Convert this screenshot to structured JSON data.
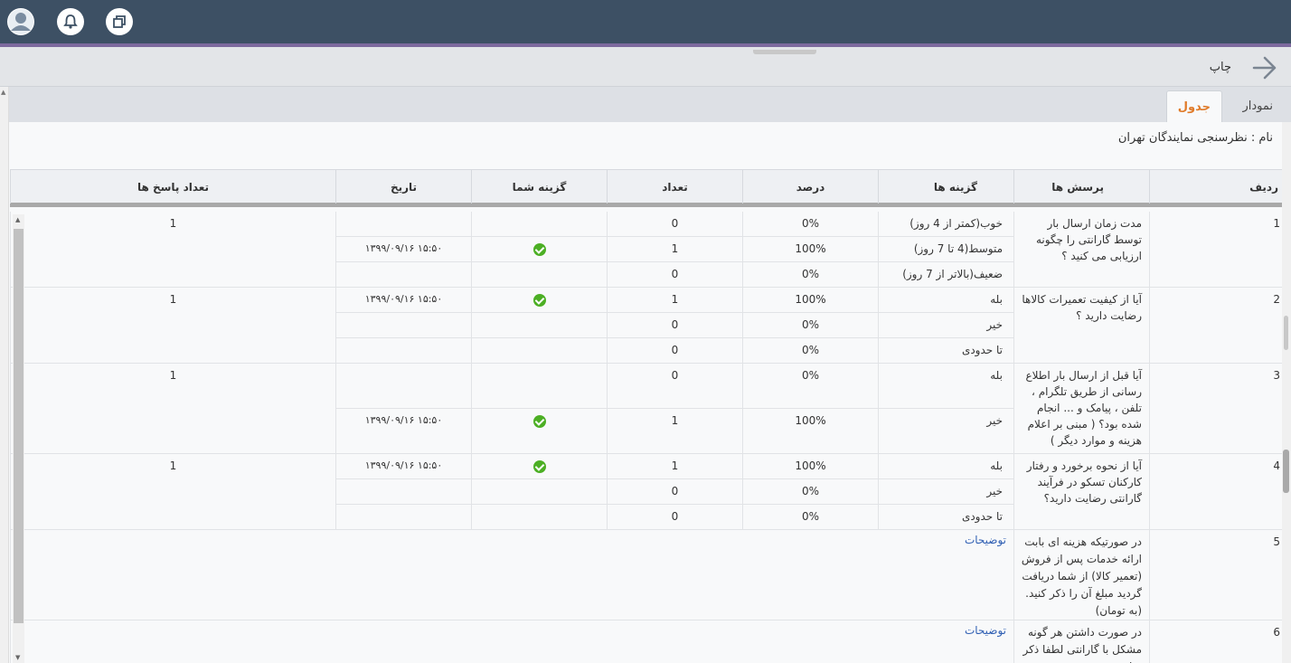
{
  "header": {
    "icons": [
      "avatar-icon",
      "bell-icon",
      "window-icon"
    ]
  },
  "toolbar": {
    "print_label": "چاپ"
  },
  "tabs": {
    "table_label": "جدول",
    "chart_label": "نمودار"
  },
  "survey": {
    "name_line": "نام : نظرسنجی نمایندگان تهران"
  },
  "table": {
    "columns": {
      "row": "ردیف",
      "question": "پرسش ها",
      "options": "گزینه ها",
      "percent": "درصد",
      "count": "تعداد",
      "your_choice": "گزینه شما",
      "date": "تاریخ",
      "answers_count": "تعداد پاسخ ها"
    },
    "rows": [
      {
        "num": "1",
        "question": "مدت زمان ارسال بار توسط گارانتی را چگونه ارزیابی می کنید ؟",
        "answers_count": "1",
        "options": [
          {
            "label": "خوب(کمتر از 4 روز)",
            "percent": "0%",
            "count": "0",
            "date": ""
          },
          {
            "label": "متوسط(4 تا 7 روز)",
            "percent": "100%",
            "count": "1",
            "date": "۱۳۹۹/۰۹/۱۶ ۱۵:۵۰"
          },
          {
            "label": "ضعیف(بالاتر از 7 روز)",
            "percent": "0%",
            "count": "0",
            "date": ""
          }
        ]
      },
      {
        "num": "2",
        "question": "آیا از کیفیت تعمیرات کالاها رضایت دارید ؟",
        "answers_count": "1",
        "options": [
          {
            "label": "بله",
            "percent": "100%",
            "count": "1",
            "date": "۱۳۹۹/۰۹/۱۶ ۱۵:۵۰"
          },
          {
            "label": "خیر",
            "percent": "0%",
            "count": "0",
            "date": ""
          },
          {
            "label": "تا حدودی",
            "percent": "0%",
            "count": "0",
            "date": ""
          }
        ]
      },
      {
        "num": "3",
        "question": "آیا قبل از ارسال بار اطلاع رسانی از طریق تلگرام ، تلفن ، پیامک و ... انجام شده بود؟ ( مبنی بر اعلام هزینه و موارد دیگر )",
        "answers_count": "1",
        "options": [
          {
            "label": "بله",
            "percent": "0%",
            "count": "0",
            "date": ""
          },
          {
            "label": "خیر",
            "percent": "100%",
            "count": "1",
            "date": "۱۳۹۹/۰۹/۱۶ ۱۵:۵۰"
          }
        ]
      },
      {
        "num": "4",
        "question": "آیا از نحوه برخورد و رفتار کارکنان تسکو در فرآیند گارانتی رضایت دارید؟",
        "answers_count": "1",
        "options": [
          {
            "label": "بله",
            "percent": "100%",
            "count": "1",
            "date": "۱۳۹۹/۰۹/۱۶ ۱۵:۵۰"
          },
          {
            "label": "خیر",
            "percent": "0%",
            "count": "0",
            "date": ""
          },
          {
            "label": "تا حدودی",
            "percent": "0%",
            "count": "0",
            "date": ""
          }
        ]
      },
      {
        "num": "5",
        "question": "در صورتیکه هزینه ای بابت ارائه خدمات پس از فروش (تعمیر کالا) از شما دریافت گردید مبلغ آن را ذکر کنید. (به تومان)",
        "link": "توضیحات"
      },
      {
        "num": "6",
        "question": "در صورت داشتن هر گونه مشکل با گارانتی لطفا ذکر نمایید",
        "link": "توضیحات"
      }
    ]
  }
}
